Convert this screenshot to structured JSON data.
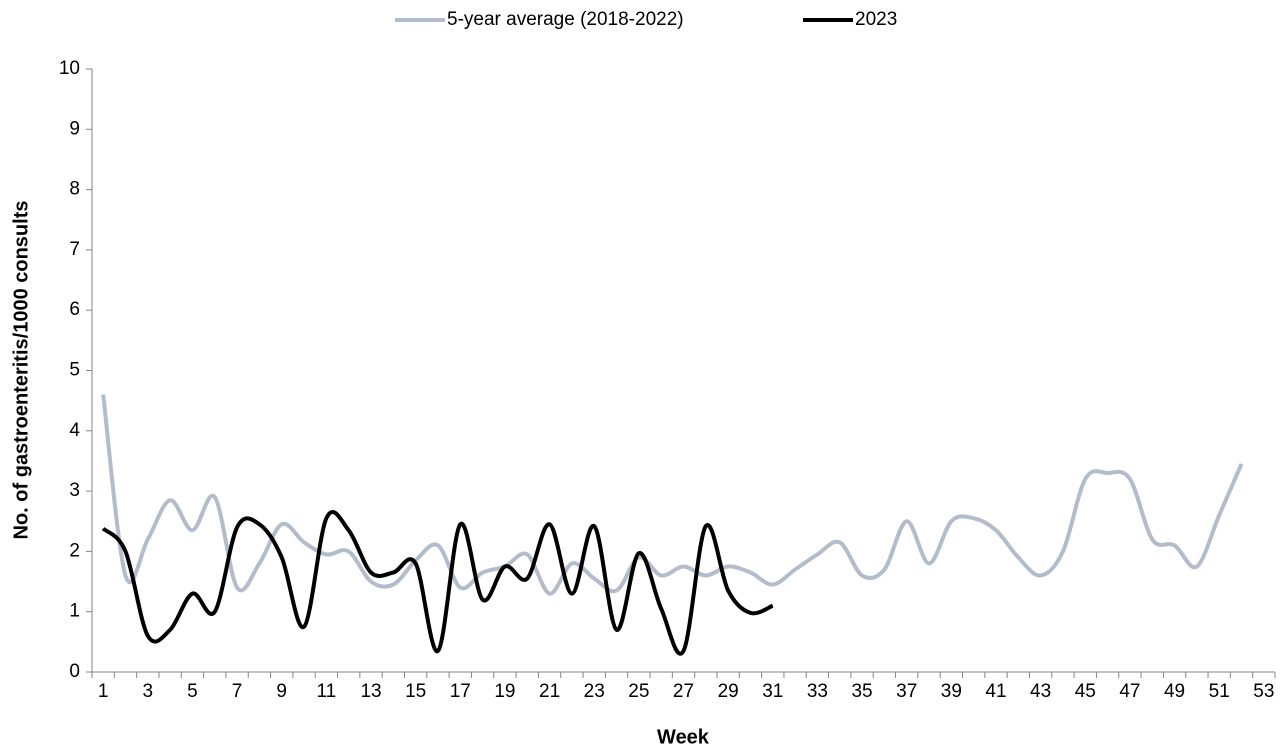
{
  "chart_data": {
    "type": "line",
    "x_label": "Week",
    "y_label": "No. of gastroenteritis/1000 consults",
    "categories": [
      1,
      null,
      3,
      null,
      5,
      null,
      7,
      null,
      9,
      null,
      11,
      null,
      13,
      null,
      15,
      null,
      17,
      null,
      19,
      null,
      21,
      null,
      23,
      null,
      25,
      null,
      27,
      null,
      29,
      null,
      31,
      null,
      33,
      null,
      35,
      null,
      37,
      null,
      39,
      null,
      41,
      null,
      43,
      null,
      45,
      null,
      47,
      null,
      49,
      null,
      51,
      null,
      53
    ],
    "series": [
      {
        "name": "5-year average (2018-2022)",
        "color": "#b3bccb",
        "values": [
          4.6,
          1.6,
          2.2,
          2.85,
          2.35,
          2.9,
          1.4,
          1.8,
          2.45,
          2.15,
          1.95,
          2.0,
          1.5,
          1.45,
          1.85,
          2.1,
          1.4,
          1.65,
          1.75,
          1.95,
          1.3,
          1.8,
          1.55,
          1.35,
          1.9,
          1.6,
          1.75,
          1.6,
          1.75,
          1.65,
          1.45,
          1.7,
          1.95,
          2.15,
          1.6,
          1.7,
          2.5,
          1.8,
          2.5,
          2.55,
          2.35,
          1.9,
          1.6,
          2.0,
          3.2,
          3.3,
          3.2,
          2.2,
          2.1,
          1.75,
          2.6,
          3.45,
          null
        ]
      },
      {
        "name": "2023",
        "color": "#000000",
        "values": [
          2.38,
          2.0,
          0.6,
          0.7,
          1.3,
          1.0,
          2.4,
          2.45,
          1.9,
          0.75,
          2.55,
          2.35,
          1.65,
          1.65,
          1.8,
          0.35,
          2.45,
          1.2,
          1.75,
          1.55,
          2.45,
          1.3,
          2.42,
          0.7,
          1.97,
          1.05,
          0.35,
          2.42,
          1.35,
          0.98,
          1.1,
          null,
          null,
          null,
          null,
          null,
          null,
          null,
          null,
          null,
          null,
          null,
          null,
          null,
          null,
          null,
          null,
          null,
          null,
          null,
          null,
          null,
          null
        ]
      }
    ],
    "ylim": [
      0,
      10
    ],
    "yticks": [
      0,
      1,
      2,
      3,
      4,
      5,
      6,
      7,
      8,
      9,
      10
    ],
    "legend": "top"
  }
}
